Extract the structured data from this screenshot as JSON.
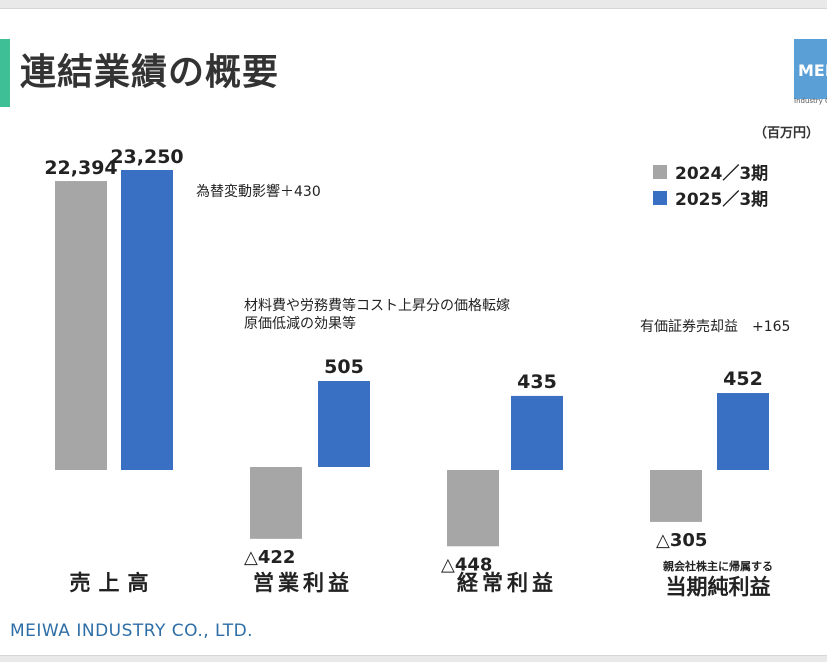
{
  "title": "連結業績の概要",
  "logo": {
    "text": "MEIWA",
    "sub": "Industry Co."
  },
  "unit": "（百万円）",
  "legend": [
    {
      "label": "2024／3期",
      "color": "#a6a6a6"
    },
    {
      "label": "2025／3期",
      "color": "#3a70c4"
    }
  ],
  "annotations": {
    "sales_fx": "為替変動影響＋430",
    "op_line1": "材料費や労務費等コスト上昇分の価格転嫁",
    "op_line2": "原価低減の効果等",
    "net_gain": "有価証券売却益　+165"
  },
  "footer": "MEIWA INDUSTRY CO., LTD.",
  "chart_data": {
    "type": "bar",
    "categories": [
      "売上高",
      "営業利益",
      "経常利益",
      "当期純利益"
    ],
    "category_sub": [
      "",
      "",
      "",
      "親会社株主に帰属する"
    ],
    "series": [
      {
        "name": "2024／3期",
        "values": [
          22394,
          -422,
          -448,
          -305
        ],
        "labels": [
          "22,394",
          "△422",
          "△448",
          "△305"
        ]
      },
      {
        "name": "2025／3期",
        "values": [
          23250,
          505,
          435,
          452
        ],
        "labels": [
          "23,250",
          "505",
          "435",
          "452"
        ]
      }
    ]
  }
}
